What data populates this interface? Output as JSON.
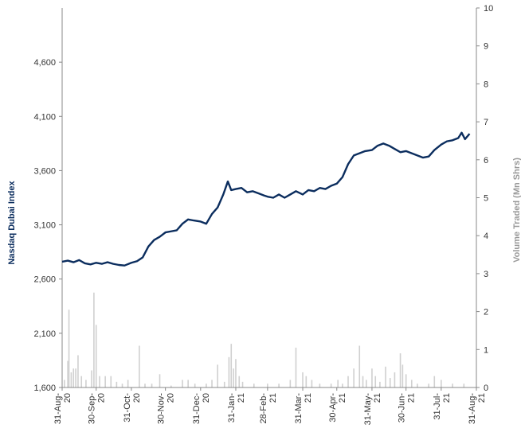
{
  "chart_data": {
    "type": "line",
    "title": "",
    "ylabel_left": "Nasdaq Dubai Index",
    "ylabel_right": "Volume Traded (Mn Shrs)",
    "y_left": {
      "min": 1600,
      "max": 5100,
      "ticks": [
        1600,
        2100,
        2600,
        3100,
        3600,
        4100,
        4600
      ],
      "tick_labels": [
        "1,600",
        "2,100",
        "2,600",
        "3,100",
        "3,600",
        "4,100",
        "4,600"
      ]
    },
    "y_right": {
      "min": 0,
      "max": 10,
      "ticks": [
        0,
        1,
        2,
        3,
        4,
        5,
        6,
        7,
        8,
        9,
        10
      ],
      "tick_labels": [
        "0",
        "1",
        "2",
        "3",
        "4",
        "5",
        "6",
        "7",
        "8",
        "9",
        "10"
      ]
    },
    "x_labels": [
      "31-Aug-20",
      "30-Sep-20",
      "31-Oct-20",
      "30-Nov-20",
      "31-Dec-20",
      "31-Jan-21",
      "28-Feb-21",
      "31-Mar-21",
      "30-Apr-21",
      "31-May-21",
      "30-Jun-21",
      "31-Jul-21",
      "31-Aug-21"
    ],
    "colors": {
      "index_line": "#0b2d5e",
      "volume_bars": "#d0d0d0",
      "axis": "#888888",
      "left_title": "#0b2d5e",
      "right_title": "#999999"
    },
    "series": [
      {
        "name": "Nasdaq Dubai Index",
        "axis": "left",
        "kind": "line",
        "points": [
          [
            "31-Aug-20",
            2760
          ],
          [
            "05-Sep-20",
            2770
          ],
          [
            "10-Sep-20",
            2755
          ],
          [
            "15-Sep-20",
            2775
          ],
          [
            "20-Sep-20",
            2745
          ],
          [
            "25-Sep-20",
            2735
          ],
          [
            "30-Sep-20",
            2750
          ],
          [
            "05-Oct-20",
            2740
          ],
          [
            "10-Oct-20",
            2755
          ],
          [
            "15-Oct-20",
            2740
          ],
          [
            "20-Oct-20",
            2730
          ],
          [
            "25-Oct-20",
            2725
          ],
          [
            "31-Oct-20",
            2750
          ],
          [
            "05-Nov-20",
            2765
          ],
          [
            "10-Nov-20",
            2800
          ],
          [
            "15-Nov-20",
            2900
          ],
          [
            "20-Nov-20",
            2960
          ],
          [
            "25-Nov-20",
            2990
          ],
          [
            "30-Nov-20",
            3030
          ],
          [
            "05-Dec-20",
            3040
          ],
          [
            "10-Dec-20",
            3050
          ],
          [
            "15-Dec-20",
            3110
          ],
          [
            "20-Dec-20",
            3150
          ],
          [
            "25-Dec-20",
            3140
          ],
          [
            "31-Dec-20",
            3130
          ],
          [
            "05-Jan-21",
            3110
          ],
          [
            "10-Jan-21",
            3200
          ],
          [
            "15-Jan-21",
            3260
          ],
          [
            "20-Jan-21",
            3380
          ],
          [
            "24-Jan-21",
            3500
          ],
          [
            "27-Jan-21",
            3420
          ],
          [
            "31-Jan-21",
            3430
          ],
          [
            "05-Feb-21",
            3440
          ],
          [
            "10-Feb-21",
            3400
          ],
          [
            "15-Feb-21",
            3410
          ],
          [
            "20-Feb-21",
            3390
          ],
          [
            "25-Feb-21",
            3370
          ],
          [
            "28-Feb-21",
            3360
          ],
          [
            "05-Mar-21",
            3350
          ],
          [
            "10-Mar-21",
            3380
          ],
          [
            "15-Mar-21",
            3350
          ],
          [
            "20-Mar-21",
            3380
          ],
          [
            "25-Mar-21",
            3410
          ],
          [
            "31-Mar-21",
            3380
          ],
          [
            "05-Apr-21",
            3420
          ],
          [
            "10-Apr-21",
            3410
          ],
          [
            "15-Apr-21",
            3440
          ],
          [
            "20-Apr-21",
            3430
          ],
          [
            "25-Apr-21",
            3460
          ],
          [
            "30-Apr-21",
            3480
          ],
          [
            "05-May-21",
            3540
          ],
          [
            "10-May-21",
            3660
          ],
          [
            "15-May-21",
            3740
          ],
          [
            "20-May-21",
            3760
          ],
          [
            "25-May-21",
            3780
          ],
          [
            "31-May-21",
            3790
          ],
          [
            "05-Jun-21",
            3830
          ],
          [
            "10-Jun-21",
            3850
          ],
          [
            "15-Jun-21",
            3830
          ],
          [
            "20-Jun-21",
            3800
          ],
          [
            "25-Jun-21",
            3770
          ],
          [
            "30-Jun-21",
            3780
          ],
          [
            "05-Jul-21",
            3760
          ],
          [
            "10-Jul-21",
            3740
          ],
          [
            "15-Jul-21",
            3720
          ],
          [
            "20-Jul-21",
            3730
          ],
          [
            "25-Jul-21",
            3790
          ],
          [
            "31-Jul-21",
            3840
          ],
          [
            "05-Aug-21",
            3870
          ],
          [
            "10-Aug-21",
            3880
          ],
          [
            "15-Aug-21",
            3900
          ],
          [
            "18-Aug-21",
            3950
          ],
          [
            "21-Aug-21",
            3890
          ],
          [
            "25-Aug-21",
            3940
          ]
        ]
      },
      {
        "name": "Volume Traded (Mn Shrs)",
        "axis": "right",
        "kind": "bar",
        "points": [
          [
            "02-Sep-20",
            0.2
          ],
          [
            "05-Sep-20",
            0.7
          ],
          [
            "06-Sep-20",
            2.05
          ],
          [
            "08-Sep-20",
            0.4
          ],
          [
            "10-Sep-20",
            0.5
          ],
          [
            "12-Sep-20",
            0.5
          ],
          [
            "14-Sep-20",
            0.85
          ],
          [
            "17-Sep-20",
            0.3
          ],
          [
            "21-Sep-20",
            0.2
          ],
          [
            "26-Sep-20",
            0.45
          ],
          [
            "28-Sep-20",
            2.5
          ],
          [
            "30-Sep-20",
            1.65
          ],
          [
            "03-Oct-20",
            0.3
          ],
          [
            "08-Oct-20",
            0.3
          ],
          [
            "13-Oct-20",
            0.3
          ],
          [
            "18-Oct-20",
            0.15
          ],
          [
            "23-Oct-20",
            0.1
          ],
          [
            "28-Oct-20",
            0.2
          ],
          [
            "07-Nov-20",
            1.1
          ],
          [
            "12-Nov-20",
            0.1
          ],
          [
            "18-Nov-20",
            0.1
          ],
          [
            "25-Nov-20",
            0.35
          ],
          [
            "05-Dec-20",
            0.05
          ],
          [
            "15-Dec-20",
            0.2
          ],
          [
            "20-Dec-20",
            0.2
          ],
          [
            "26-Dec-20",
            0.1
          ],
          [
            "05-Jan-21",
            0.1
          ],
          [
            "10-Jan-21",
            0.2
          ],
          [
            "15-Jan-21",
            0.6
          ],
          [
            "21-Jan-21",
            0.15
          ],
          [
            "25-Jan-21",
            0.8
          ],
          [
            "27-Jan-21",
            1.15
          ],
          [
            "29-Jan-21",
            0.5
          ],
          [
            "31-Jan-21",
            0.75
          ],
          [
            "03-Feb-21",
            0.3
          ],
          [
            "06-Feb-21",
            0.15
          ],
          [
            "16-Feb-21",
            0.1
          ],
          [
            "28-Feb-21",
            0.1
          ],
          [
            "10-Mar-21",
            0.1
          ],
          [
            "20-Mar-21",
            0.2
          ],
          [
            "25-Mar-21",
            1.05
          ],
          [
            "31-Mar-21",
            0.4
          ],
          [
            "03-Apr-21",
            0.3
          ],
          [
            "08-Apr-21",
            0.2
          ],
          [
            "15-Apr-21",
            0.1
          ],
          [
            "25-Apr-21",
            0.1
          ],
          [
            "01-May-21",
            0.2
          ],
          [
            "05-May-21",
            0.1
          ],
          [
            "10-May-21",
            0.3
          ],
          [
            "15-May-21",
            0.5
          ],
          [
            "20-May-21",
            1.1
          ],
          [
            "23-May-21",
            0.3
          ],
          [
            "26-May-21",
            0.2
          ],
          [
            "31-May-21",
            0.5
          ],
          [
            "03-Jun-21",
            0.3
          ],
          [
            "07-Jun-21",
            0.15
          ],
          [
            "12-Jun-21",
            0.55
          ],
          [
            "16-Jun-21",
            0.25
          ],
          [
            "20-Jun-21",
            0.4
          ],
          [
            "25-Jun-21",
            0.9
          ],
          [
            "27-Jun-21",
            0.6
          ],
          [
            "30-Jun-21",
            0.35
          ],
          [
            "05-Jul-21",
            0.2
          ],
          [
            "10-Jul-21",
            0.1
          ],
          [
            "20-Jul-21",
            0.1
          ],
          [
            "25-Jul-21",
            0.3
          ],
          [
            "31-Jul-21",
            0.2
          ],
          [
            "10-Aug-21",
            0.1
          ],
          [
            "20-Aug-21",
            0.1
          ]
        ]
      }
    ],
    "grid": false,
    "legend": "none"
  }
}
